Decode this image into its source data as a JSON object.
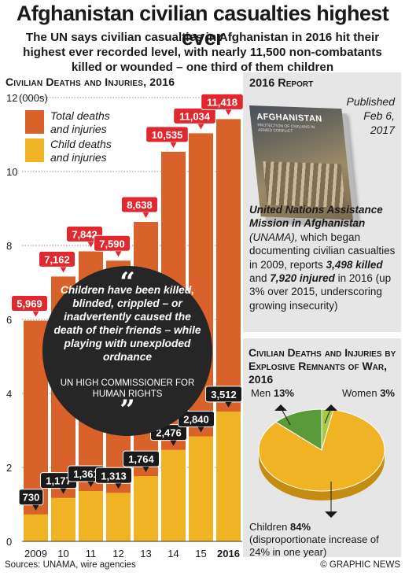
{
  "header": {
    "title": "Afghanistan civilian casualties highest ever",
    "subtitle": "The UN says civilian casualties in Afghanistan in 2016 hit their highest ever recorded level, with nearly 11,500 non-combatants killed or wounded – one third of them children"
  },
  "chart_heading": "Civilian Deaths and Injuries, 2016",
  "chart_data": {
    "type": "bar",
    "categories": [
      "2009",
      "10",
      "11",
      "12",
      "13",
      "14",
      "15",
      "2016"
    ],
    "y_unit_label": "(000s)",
    "ylim": [
      0,
      12
    ],
    "yticks": [
      "0",
      "2",
      "4",
      "6",
      "8",
      "10",
      "12"
    ],
    "series": [
      {
        "name": "Total deaths and injuries",
        "color": "#d9622b",
        "values": [
          5969,
          7162,
          7842,
          7590,
          8638,
          10535,
          11034,
          11418
        ],
        "labels": [
          "5,969",
          "7,162",
          "7,842",
          "7,590",
          "8,638",
          "10,535",
          "11,034",
          "11,418"
        ]
      },
      {
        "name": "Child deaths and injuries",
        "color": "#f0b323",
        "values": [
          730,
          1177,
          1361,
          1313,
          1764,
          2476,
          2840,
          3512
        ],
        "labels": [
          "730",
          "1,177",
          "1,361",
          "1,313",
          "1,764",
          "2,476",
          "2,840",
          "3,512"
        ]
      }
    ],
    "legend": [
      "Total deaths and injuries",
      "Child deaths and injuries"
    ],
    "grid": true
  },
  "quote": {
    "open_mark": "“",
    "text": "Children have been killed, blinded, crippled – or inadvertently caused the death of their friends – while playing with unexploded ordnance",
    "attribution": "UN HIGH COMMISSIONER FOR HUMAN RIGHTS",
    "close_mark": "”"
  },
  "report_panel": {
    "title": "2016 Report",
    "published_line1": "Published",
    "published_line2": "Feb 6,",
    "published_line3": "2017",
    "book_title": "AFGHANISTAN",
    "book_subtitle": "PROTECTION OF CIVILIANS IN ARMED CONFLICT",
    "org_name": "United Nations Assistance Mission in Afghanistan",
    "org_abbr": "(UNAMA),",
    "text_1": "which began documenting civilian casualties in 2009, reports",
    "killed": "3,498 killed",
    "text_and": "and",
    "injured": "7,920 injured",
    "text_2": "in 2016 (up 3% over 2015, underscoring growing insecurity)"
  },
  "explosive_panel": {
    "title": "Civilian Deaths and Injuries by Explosive Remnants of War, 2016",
    "slices": [
      {
        "name": "Men",
        "label": "13%",
        "value": 13,
        "color": "#5a9a3a"
      },
      {
        "name": "Women",
        "label": "3%",
        "value": 3,
        "color": "#a6c94a"
      },
      {
        "name": "Children",
        "label": "84%",
        "value": 84,
        "color": "#f0b323"
      }
    ],
    "children_note": "(disproportionate increase of 24% in one year)"
  },
  "footer": {
    "sources": "Sources: UNAMA, wire agencies",
    "credit": "© GRAPHIC NEWS"
  }
}
